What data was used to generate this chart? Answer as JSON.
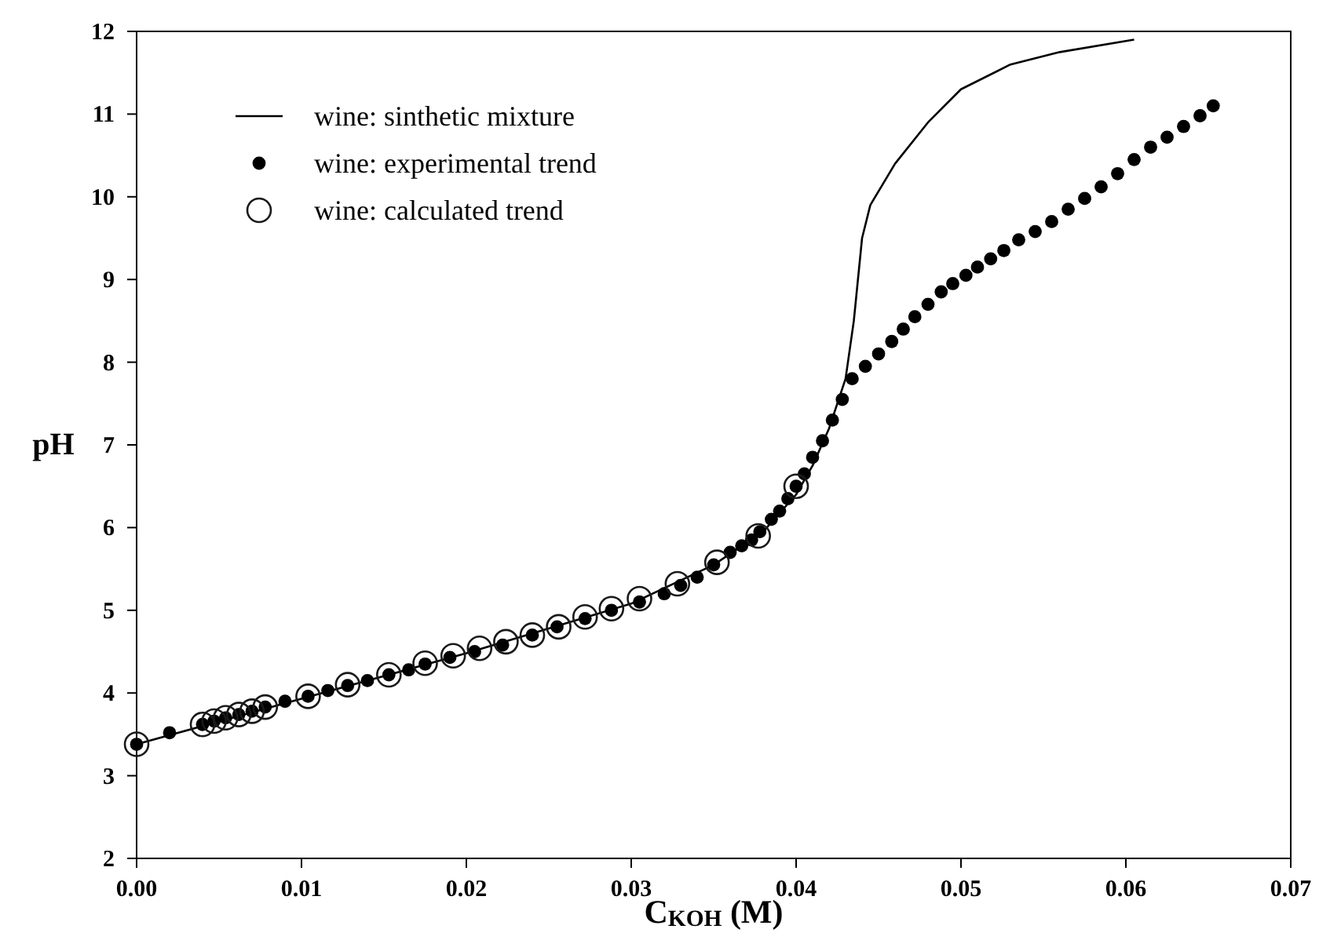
{
  "chart_data": {
    "type": "scatter",
    "xlabel": "C$_{KOH}$ (M)",
    "ylabel": "pH",
    "xlim": [
      0,
      0.07
    ],
    "ylim": [
      2,
      12
    ],
    "xticks": [
      {
        "value": 0,
        "label": "0.00"
      },
      {
        "value": 0.01,
        "label": "0.01"
      },
      {
        "value": 0.02,
        "label": "0.02"
      },
      {
        "value": 0.03,
        "label": "0.03"
      },
      {
        "value": 0.04,
        "label": "0.04"
      },
      {
        "value": 0.05,
        "label": "0.05"
      },
      {
        "value": 0.06,
        "label": "0.06"
      },
      {
        "value": 0.07,
        "label": "0.07"
      }
    ],
    "yticks": [
      2,
      3,
      4,
      5,
      6,
      7,
      8,
      9,
      10,
      11,
      12
    ],
    "grid": false,
    "legend": "top left",
    "series": [
      {
        "name": "wine: sinthetic mixture",
        "type": "line",
        "marker": "none",
        "line_style": "solid",
        "color": "#000000",
        "x": [
          0,
          0.01,
          0.02,
          0.03,
          0.035,
          0.038,
          0.04,
          0.041,
          0.042,
          0.043,
          0.0435,
          0.044,
          0.0445,
          0.046,
          0.048,
          0.05,
          0.053,
          0.056,
          0.0605
        ],
        "values": [
          3.38,
          3.93,
          4.48,
          5.08,
          5.55,
          5.95,
          6.4,
          6.75,
          7.2,
          7.8,
          8.5,
          9.5,
          9.9,
          10.4,
          10.9,
          11.3,
          11.6,
          11.75,
          11.9
        ]
      },
      {
        "name": "wine: experimental trend",
        "marker": "circle",
        "color": "#000000",
        "x": [
          0,
          0.002,
          0.004,
          0.0047,
          0.0054,
          0.0062,
          0.007,
          0.0078,
          0.009,
          0.0104,
          0.0116,
          0.0128,
          0.014,
          0.0153,
          0.0165,
          0.0175,
          0.019,
          0.0205,
          0.0222,
          0.024,
          0.0255,
          0.0272,
          0.0288,
          0.0305,
          0.032,
          0.033,
          0.034,
          0.035,
          0.036,
          0.0367,
          0.0373,
          0.0378,
          0.0385,
          0.039,
          0.0395,
          0.04,
          0.0405,
          0.041,
          0.0416,
          0.0422,
          0.0428,
          0.0434,
          0.0442,
          0.045,
          0.0458,
          0.0465,
          0.0472,
          0.048,
          0.0488,
          0.0495,
          0.0503,
          0.051,
          0.0518,
          0.0526,
          0.0535,
          0.0545,
          0.0555,
          0.0565,
          0.0575,
          0.0585,
          0.0595,
          0.0605,
          0.0615,
          0.0625,
          0.0635,
          0.0645,
          0.0653
        ],
        "values": [
          3.38,
          3.52,
          3.62,
          3.66,
          3.7,
          3.74,
          3.78,
          3.83,
          3.9,
          3.96,
          4.03,
          4.09,
          4.15,
          4.22,
          4.28,
          4.35,
          4.43,
          4.5,
          4.58,
          4.7,
          4.8,
          4.9,
          5.0,
          5.1,
          5.2,
          5.3,
          5.4,
          5.55,
          5.7,
          5.78,
          5.85,
          5.95,
          6.1,
          6.2,
          6.35,
          6.5,
          6.65,
          6.85,
          7.05,
          7.3,
          7.55,
          7.8,
          7.95,
          8.1,
          8.25,
          8.4,
          8.55,
          8.7,
          8.85,
          8.95,
          9.05,
          9.15,
          9.25,
          9.35,
          9.48,
          9.58,
          9.7,
          9.85,
          9.98,
          10.12,
          10.28,
          10.45,
          10.6,
          10.72,
          10.85,
          10.98,
          11.1
        ]
      },
      {
        "name": "wine: calculated trend",
        "marker": "circle",
        "color": "#1a1a1a",
        "x": [
          0,
          0.004,
          0.0047,
          0.0054,
          0.0062,
          0.007,
          0.0078,
          0.0104,
          0.0128,
          0.0153,
          0.0175,
          0.0192,
          0.0208,
          0.0224,
          0.024,
          0.0256,
          0.0272,
          0.0288,
          0.0305,
          0.0328,
          0.0352,
          0.0377,
          0.04
        ],
        "values": [
          3.38,
          3.62,
          3.66,
          3.7,
          3.74,
          3.78,
          3.83,
          3.96,
          4.1,
          4.22,
          4.36,
          4.45,
          4.54,
          4.62,
          4.7,
          4.8,
          4.92,
          5.02,
          5.14,
          5.32,
          5.58,
          5.9,
          6.5
        ]
      }
    ]
  }
}
